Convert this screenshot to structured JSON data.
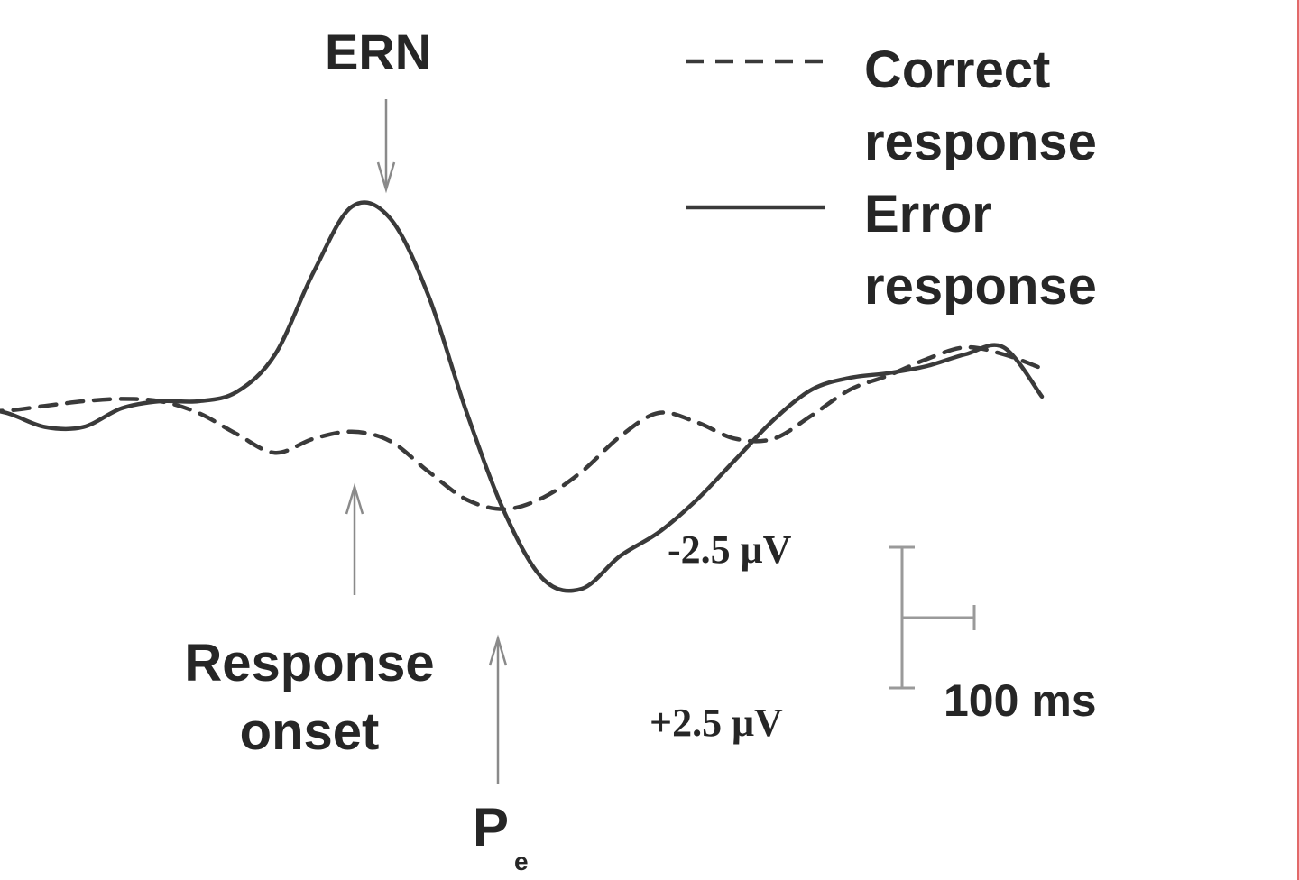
{
  "chart_data": {
    "type": "line",
    "title": "",
    "xlabel": "",
    "ylabel": "",
    "x_unit": "ms",
    "y_unit": "μV",
    "y_axis_inverted": true,
    "grid": false,
    "legend_position": "top-right",
    "x": [
      -325,
      -300,
      -275,
      -250,
      -225,
      -200,
      -175,
      -150,
      -125,
      -100,
      -75,
      -50,
      -25,
      0,
      25,
      50,
      75,
      100,
      125,
      150,
      175,
      200,
      225,
      250,
      275,
      300,
      325,
      350,
      375,
      400,
      425,
      450
    ],
    "series": [
      {
        "name": "Correct response",
        "line_style": "dashed",
        "color": "#3a3a3a",
        "values": [
          -0.5,
          0.0,
          0.3,
          0.4,
          0.4,
          0.2,
          0.0,
          -0.1,
          0.0,
          0.5,
          1.4,
          2.2,
          1.6,
          1.3,
          1.7,
          3.0,
          4.2,
          4.6,
          4.1,
          3.0,
          1.5,
          0.5,
          0.9,
          1.6,
          1.6,
          0.6,
          -0.5,
          -1.1,
          -1.8,
          -2.3,
          -2.0,
          -1.4
        ]
      },
      {
        "name": "Error response",
        "line_style": "solid",
        "color": "#3a3a3a",
        "values": [
          -0.7,
          -0.5,
          0.0,
          0.2,
          0.5,
          1.1,
          1.1,
          0.3,
          0.0,
          0.0,
          -0.4,
          -2.0,
          -5.5,
          -8.3,
          -7.8,
          -4.5,
          0.5,
          4.8,
          7.6,
          8.0,
          6.6,
          5.6,
          4.2,
          2.5,
          0.8,
          -0.5,
          -1.0,
          -1.2,
          -1.5,
          -2.0,
          -2.3,
          -0.2
        ]
      }
    ],
    "annotations": {
      "ern": "ERN",
      "response_onset": [
        "Response",
        "onset"
      ],
      "pe_main": "P",
      "pe_sub": "e"
    },
    "scale_bar": {
      "negative": "-2.5 μV",
      "positive": "+2.5 μV",
      "time": "100 ms",
      "amplitude_uv": 5,
      "time_ms": 100
    },
    "legend": {
      "correct": [
        "Correct",
        "response"
      ],
      "error": [
        "Error",
        "response"
      ]
    }
  }
}
